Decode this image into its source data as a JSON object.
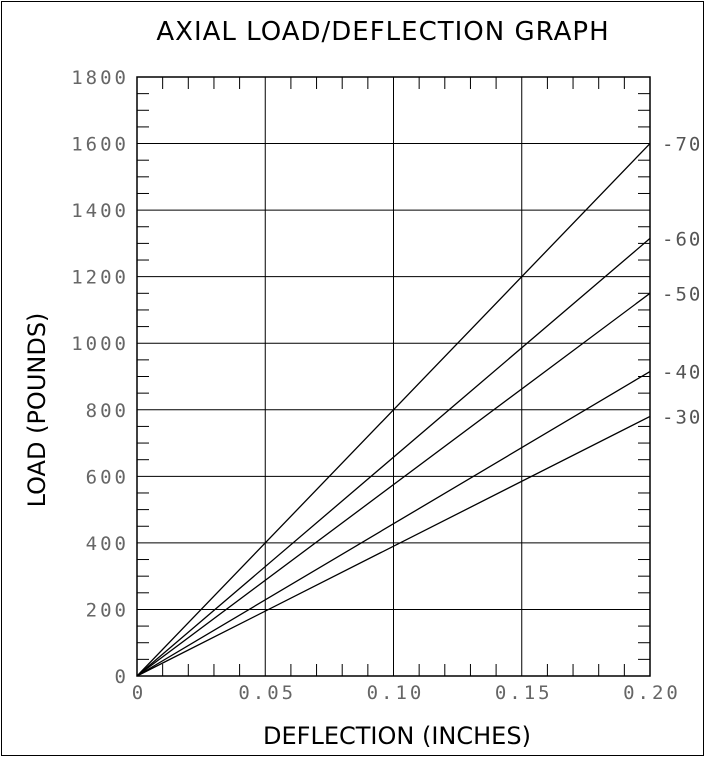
{
  "chart_data": {
    "type": "line",
    "title": "AXIAL LOAD/DEFLECTION GRAPH",
    "xlabel": "DEFLECTION (INCHES)",
    "ylabel": "LOAD (POUNDS)",
    "xlim": [
      0,
      0.2
    ],
    "ylim": [
      0,
      1800
    ],
    "x_ticks": [
      "0",
      "0.05",
      "0.10",
      "0.15",
      "0.20"
    ],
    "y_ticks": [
      "0",
      "200",
      "400",
      "600",
      "800",
      "1000",
      "1200",
      "1400",
      "1600",
      "1800"
    ],
    "grid": true,
    "series": [
      {
        "name": "-70",
        "x": [
          0,
          0.2
        ],
        "y": [
          0,
          1600
        ]
      },
      {
        "name": "-60",
        "x": [
          0,
          0.2
        ],
        "y": [
          0,
          1315
        ]
      },
      {
        "name": "-50",
        "x": [
          0,
          0.2
        ],
        "y": [
          0,
          1150
        ]
      },
      {
        "name": "-40",
        "x": [
          0,
          0.2
        ],
        "y": [
          0,
          915
        ]
      },
      {
        "name": "-30",
        "x": [
          0,
          0.2
        ],
        "y": [
          0,
          780
        ]
      }
    ],
    "colors": {
      "line": "#000000",
      "grid": "#000000",
      "tick_text": "#666666"
    }
  }
}
